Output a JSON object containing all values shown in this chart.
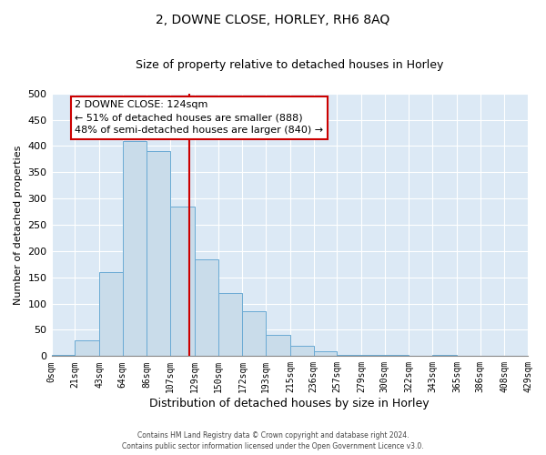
{
  "title": "2, DOWNE CLOSE, HORLEY, RH6 8AQ",
  "subtitle": "Size of property relative to detached houses in Horley",
  "xlabel": "Distribution of detached houses by size in Horley",
  "ylabel": "Number of detached properties",
  "bin_edges": [
    0,
    21,
    43,
    64,
    86,
    107,
    129,
    150,
    172,
    193,
    215,
    236,
    257,
    279,
    300,
    322,
    343,
    365,
    386,
    408,
    429
  ],
  "bar_heights": [
    3,
    30,
    160,
    410,
    390,
    285,
    185,
    120,
    85,
    40,
    20,
    10,
    3,
    3,
    3,
    0,
    3,
    0,
    0,
    0
  ],
  "bar_color": "#c9dcea",
  "bar_edge_color": "#6aaad4",
  "property_size": 124,
  "vline_color": "#cc0000",
  "annotation_line1": "2 DOWNE CLOSE: 124sqm",
  "annotation_line2": "← 51% of detached houses are smaller (888)",
  "annotation_line3": "48% of semi-detached houses are larger (840) →",
  "annotation_box_color": "#ffffff",
  "annotation_box_edge": "#cc0000",
  "ylim": [
    0,
    500
  ],
  "yticks": [
    0,
    50,
    100,
    150,
    200,
    250,
    300,
    350,
    400,
    450,
    500
  ],
  "tick_labels": [
    "0sqm",
    "21sqm",
    "43sqm",
    "64sqm",
    "86sqm",
    "107sqm",
    "129sqm",
    "150sqm",
    "172sqm",
    "193sqm",
    "215sqm",
    "236sqm",
    "257sqm",
    "279sqm",
    "300sqm",
    "322sqm",
    "343sqm",
    "365sqm",
    "386sqm",
    "408sqm",
    "429sqm"
  ],
  "footer_text": "Contains HM Land Registry data © Crown copyright and database right 2024.\nContains public sector information licensed under the Open Government Licence v3.0.",
  "fig_bg_color": "#ffffff",
  "plot_bg_color": "#dce9f5"
}
